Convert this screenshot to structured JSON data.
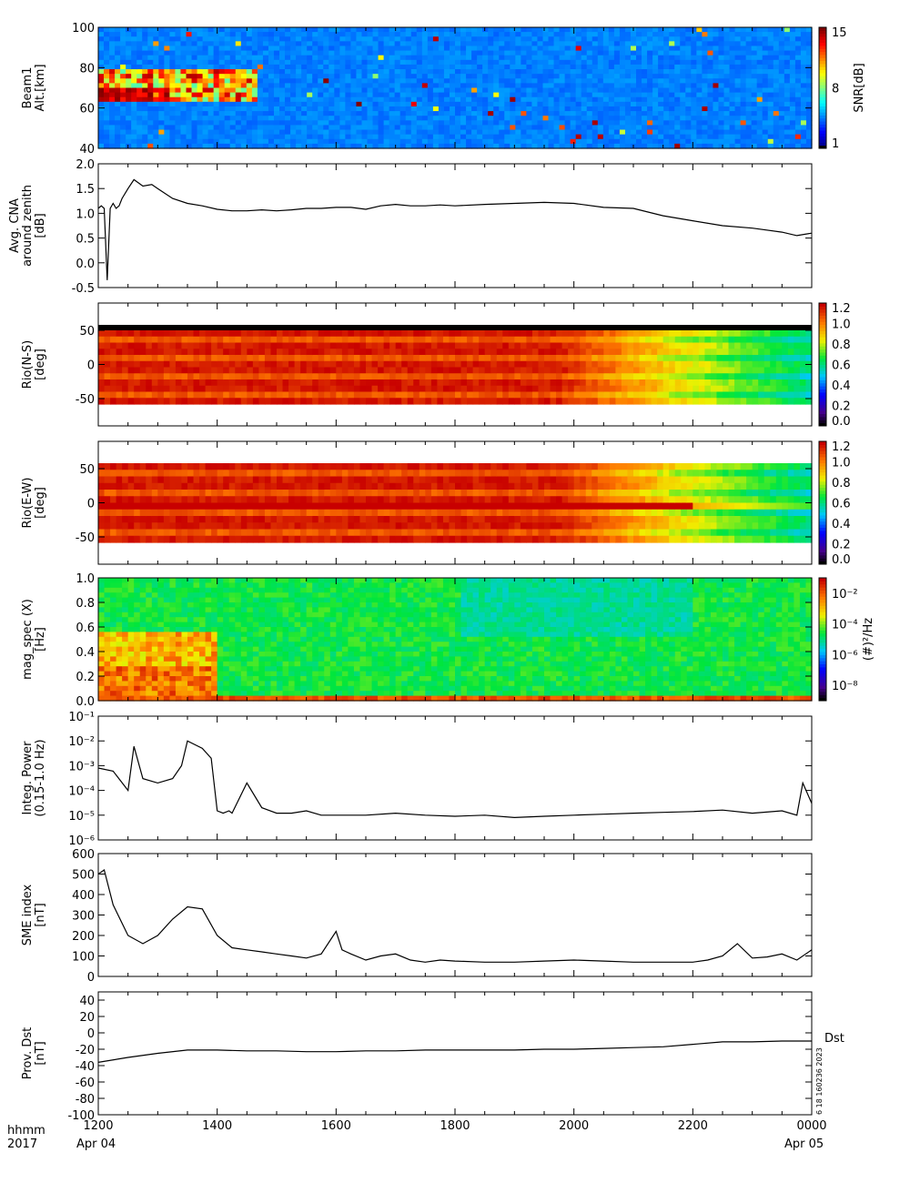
{
  "time_axis": {
    "ticks": [
      "1200",
      "1400",
      "1600",
      "1800",
      "2000",
      "2200",
      "0000"
    ],
    "row1_label": "hhmm",
    "row2_label": "2017",
    "start_date": "Apr 04",
    "end_date": "Apr 05"
  },
  "stamp": "6 18 160236 2023",
  "chart_data": [
    {
      "type": "heatmap",
      "ylabel": [
        "Beam1",
        "Alt.[km]"
      ],
      "ylim": [
        40,
        100
      ],
      "yticks": [
        40,
        60,
        80,
        100
      ],
      "colorbar": {
        "label": "SNR[dB]",
        "ticks": [
          "1",
          "8",
          "15"
        ],
        "range": [
          1,
          15
        ],
        "scale": "jet"
      },
      "grid": false
    },
    {
      "type": "line",
      "ylabel": [
        "Avg. CNA",
        "around zenith",
        "[dB]"
      ],
      "ylim": [
        -0.5,
        2.0
      ],
      "yticks": [
        "-0.5",
        "0.0",
        "0.5",
        "1.0",
        "1.5",
        "2.0"
      ],
      "x": [
        0,
        0.05,
        0.1,
        0.15,
        0.2,
        0.25,
        0.3,
        0.35,
        0.4,
        0.5,
        0.6,
        0.75,
        0.9,
        1.0,
        1.25,
        1.5,
        1.75,
        2.0,
        2.25,
        2.5,
        2.75,
        3.0,
        3.25,
        3.5,
        3.75,
        4.0,
        4.25,
        4.5,
        4.75,
        5.0,
        5.25,
        5.5,
        5.75,
        6.0,
        6.5,
        7.0,
        7.5,
        8.0,
        8.5,
        9.0,
        9.5,
        10.0,
        10.5,
        11.0,
        11.5,
        11.75,
        12.0
      ],
      "y": [
        1.1,
        1.15,
        1.1,
        -0.35,
        1.1,
        1.2,
        1.1,
        1.15,
        1.3,
        1.5,
        1.68,
        1.55,
        1.58,
        1.5,
        1.3,
        1.2,
        1.15,
        1.08,
        1.05,
        1.05,
        1.07,
        1.05,
        1.07,
        1.1,
        1.1,
        1.12,
        1.12,
        1.08,
        1.15,
        1.18,
        1.15,
        1.15,
        1.17,
        1.15,
        1.18,
        1.2,
        1.22,
        1.2,
        1.12,
        1.1,
        0.95,
        0.85,
        0.75,
        0.7,
        0.62,
        0.55,
        0.6
      ]
    },
    {
      "type": "heatmap",
      "ylabel": [
        "Rio(N-S)",
        "[deg]"
      ],
      "ylim": [
        -90,
        90
      ],
      "yticks": [
        -50,
        0,
        50
      ],
      "colorbar": {
        "label": "",
        "ticks": [
          "0.0",
          "0.2",
          "0.4",
          "0.6",
          "0.8",
          "1.0",
          "1.2"
        ],
        "range": [
          0,
          1.2
        ],
        "scale": "rainbow"
      },
      "grid": false
    },
    {
      "type": "heatmap",
      "ylabel": [
        "Rio(E-W)",
        "[deg]"
      ],
      "ylim": [
        -90,
        90
      ],
      "yticks": [
        -50,
        0,
        50
      ],
      "colorbar": {
        "label": "",
        "ticks": [
          "0.0",
          "0.2",
          "0.4",
          "0.6",
          "0.8",
          "1.0",
          "1.2"
        ],
        "range": [
          0,
          1.2
        ],
        "scale": "rainbow"
      },
      "grid": false
    },
    {
      "type": "heatmap",
      "ylabel": [
        "mag_spec (X)",
        "[Hz]"
      ],
      "ylim": [
        0,
        1.0
      ],
      "yticks": [
        "0.0",
        "0.2",
        "0.4",
        "0.6",
        "0.8",
        "1.0"
      ],
      "colorbar": {
        "label": "(#)²/Hz",
        "ticks": [
          "10⁻⁸",
          "10⁻⁶",
          "10⁻⁴",
          "10⁻²"
        ],
        "range": [
          -9,
          -1
        ],
        "scale": "rainbow-log"
      },
      "grid": false
    },
    {
      "type": "line",
      "ylabel": [
        "Integ. Power",
        "(0.15-1.0 Hz)"
      ],
      "yscale": "log",
      "ylim": [
        1e-06,
        0.1
      ],
      "yticks": [
        "10⁻⁶",
        "10⁻⁵",
        "10⁻⁴",
        "10⁻³",
        "10⁻²",
        "10⁻¹"
      ],
      "x": [
        0,
        0.25,
        0.5,
        0.6,
        0.75,
        1.0,
        1.25,
        1.4,
        1.5,
        1.75,
        1.9,
        2.0,
        2.1,
        2.2,
        2.25,
        2.5,
        2.75,
        3.0,
        3.25,
        3.5,
        3.75,
        4.0,
        4.5,
        5.0,
        5.5,
        6.0,
        6.5,
        7.0,
        7.5,
        8.0,
        8.5,
        9.0,
        9.5,
        10.0,
        10.5,
        11.0,
        11.5,
        11.75,
        11.85,
        12.0
      ],
      "y": [
        0.0008,
        0.0006,
        0.0001,
        0.006,
        0.0003,
        0.0002,
        0.0003,
        0.001,
        0.01,
        0.005,
        0.002,
        1.5e-05,
        1.2e-05,
        1.5e-05,
        1.2e-05,
        0.0002,
        2e-05,
        1.2e-05,
        1.2e-05,
        1.5e-05,
        1e-05,
        1e-05,
        1e-05,
        1.2e-05,
        1e-05,
        9e-06,
        1e-05,
        8e-06,
        9e-06,
        1e-05,
        1.1e-05,
        1.2e-05,
        1.3e-05,
        1.4e-05,
        1.6e-05,
        1.2e-05,
        1.5e-05,
        1e-05,
        0.0002,
        3e-05
      ]
    },
    {
      "type": "line",
      "ylabel": [
        "SME index",
        "[nT]"
      ],
      "ylim": [
        0,
        600
      ],
      "yticks": [
        0,
        100,
        200,
        300,
        400,
        500,
        600
      ],
      "x": [
        0,
        0.1,
        0.25,
        0.5,
        0.75,
        1.0,
        1.25,
        1.5,
        1.75,
        2.0,
        2.25,
        2.5,
        2.75,
        3.0,
        3.25,
        3.5,
        3.75,
        4.0,
        4.1,
        4.25,
        4.5,
        4.75,
        5.0,
        5.25,
        5.5,
        5.75,
        6.0,
        6.5,
        7.0,
        7.5,
        8.0,
        8.5,
        9.0,
        9.5,
        10.0,
        10.25,
        10.5,
        10.75,
        11.0,
        11.25,
        11.5,
        11.75,
        12.0
      ],
      "y": [
        500,
        520,
        350,
        200,
        160,
        200,
        280,
        340,
        330,
        200,
        140,
        130,
        120,
        110,
        100,
        90,
        110,
        220,
        130,
        110,
        80,
        100,
        110,
        80,
        70,
        80,
        75,
        70,
        70,
        75,
        80,
        75,
        70,
        70,
        70,
        80,
        100,
        160,
        90,
        95,
        110,
        80,
        130
      ]
    },
    {
      "type": "line",
      "ylabel": [
        "Prov. Dst",
        "[nT]"
      ],
      "ylim": [
        -100,
        50
      ],
      "yticks": [
        -100,
        -80,
        -60,
        -40,
        -20,
        0,
        20,
        40
      ],
      "x": [
        0,
        0.5,
        1.0,
        1.5,
        2.0,
        2.5,
        3.0,
        3.5,
        4.0,
        4.5,
        5.0,
        5.5,
        6.0,
        6.5,
        7.0,
        7.5,
        8.0,
        8.5,
        9.0,
        9.5,
        10.0,
        10.5,
        11.0,
        11.5,
        12.0
      ],
      "y": [
        -36,
        -30,
        -25,
        -21,
        -21,
        -22,
        -22,
        -23,
        -23,
        -22,
        -22,
        -21,
        -21,
        -21,
        -21,
        -20,
        -20,
        -19,
        -18,
        -17,
        -14,
        -11,
        -11,
        -10,
        -10
      ],
      "legend": "Dst"
    }
  ]
}
